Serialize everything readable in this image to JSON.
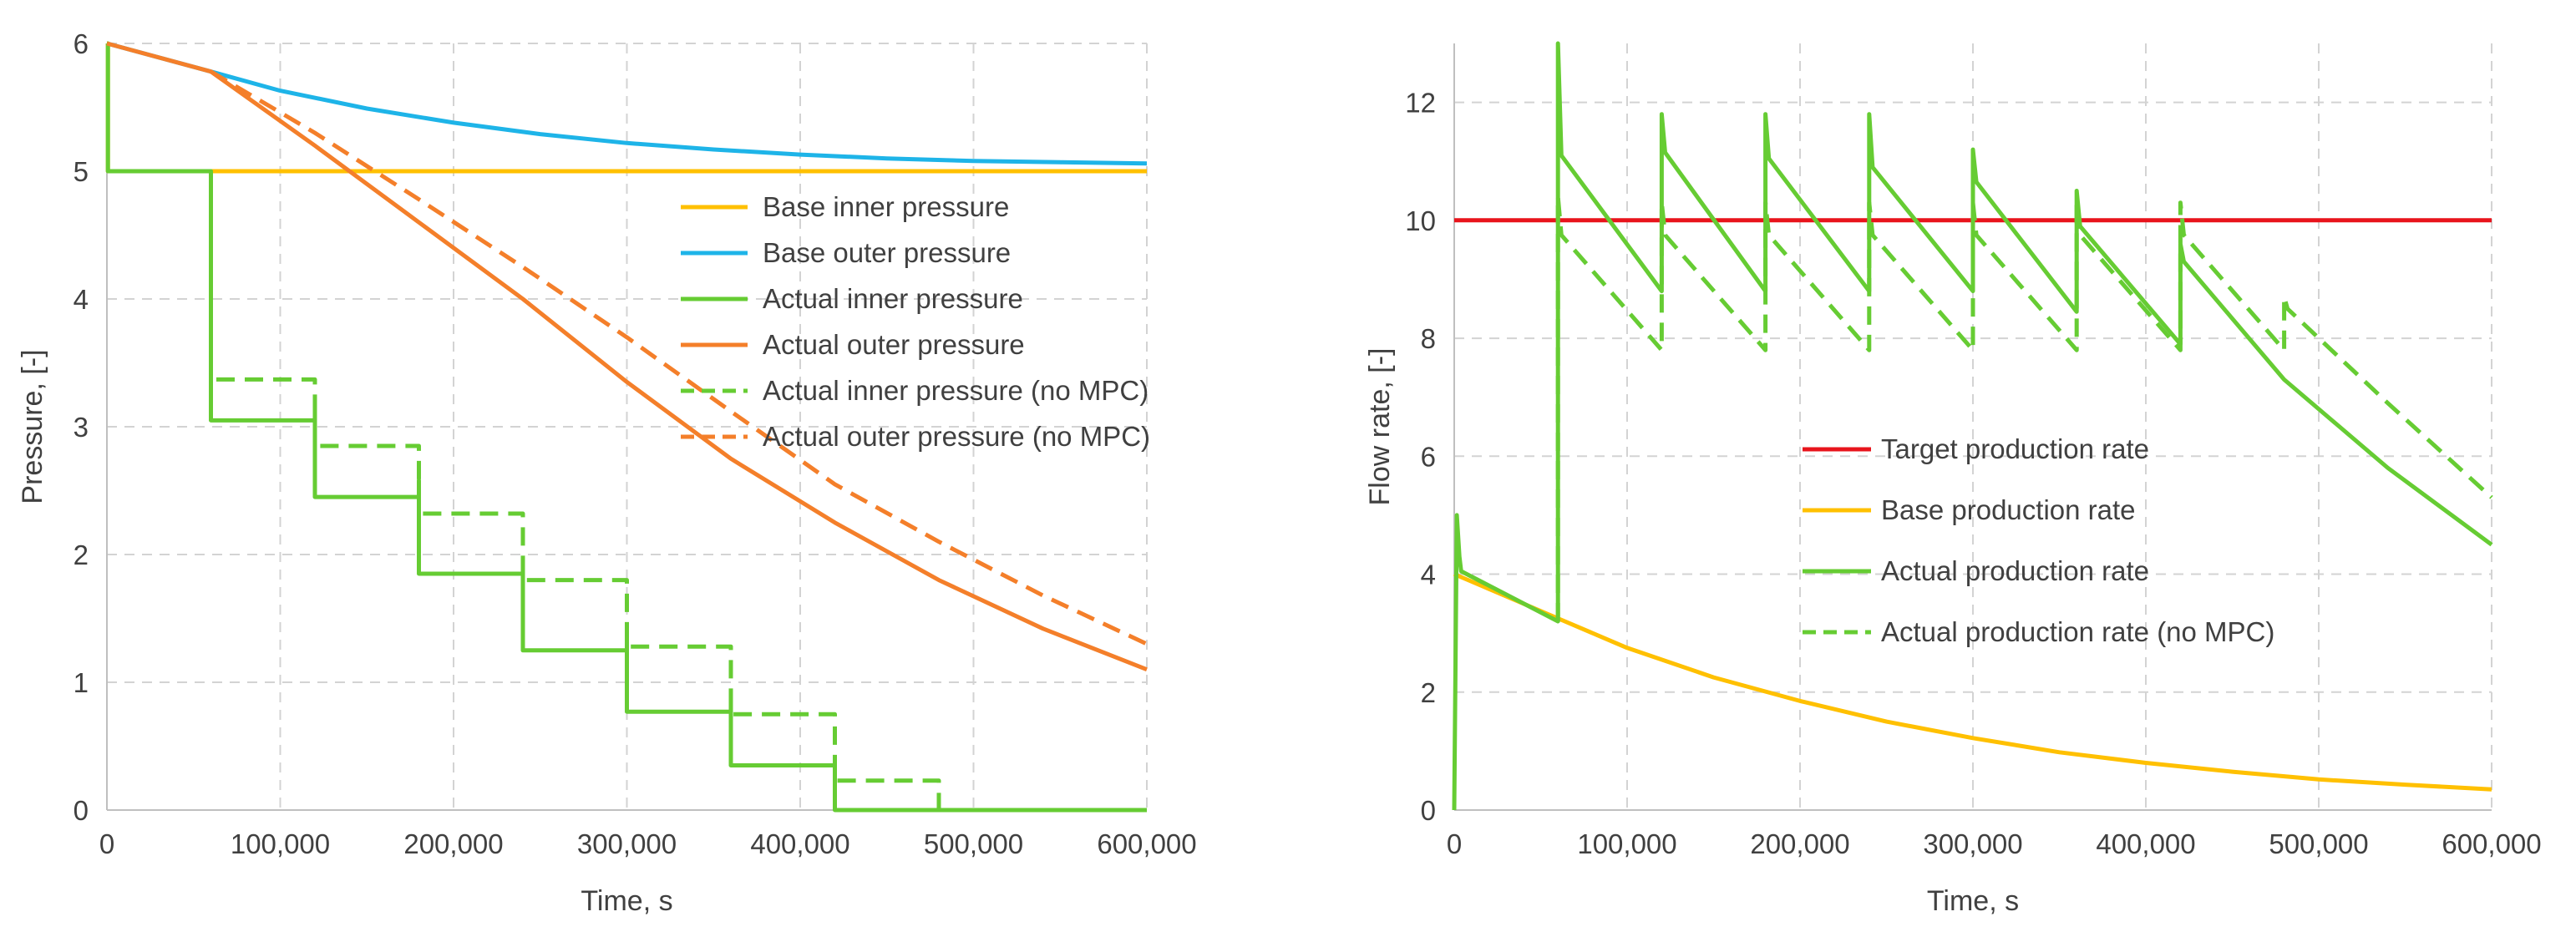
{
  "chart_data": [
    {
      "type": "line",
      "xlabel": "Time, s",
      "ylabel": "Pressure, [-]",
      "xlim": [
        0,
        600000
      ],
      "ylim": [
        0,
        6
      ],
      "x_ticks": [
        0,
        100000,
        200000,
        300000,
        400000,
        500000,
        600000
      ],
      "x_tick_labels": [
        "0",
        "100,000",
        "200,000",
        "300,000",
        "400,000",
        "500,000",
        "600,000"
      ],
      "y_ticks": [
        0,
        1,
        2,
        3,
        4,
        5,
        6
      ],
      "y_tick_labels": [
        "0",
        "1",
        "2",
        "3",
        "4",
        "5",
        "6"
      ],
      "grid": true,
      "legend_position": "center-right",
      "series": [
        {
          "name": "Base inner pressure",
          "color": "#FFC000",
          "dash": "solid",
          "x": [
            0,
            600,
            600,
            600000
          ],
          "y": [
            6,
            6,
            5,
            5
          ]
        },
        {
          "name": "Base outer pressure",
          "color": "#1EB4E8",
          "dash": "solid",
          "x": [
            0,
            60000,
            100000,
            150000,
            200000,
            250000,
            300000,
            350000,
            400000,
            450000,
            500000,
            550000,
            600000
          ],
          "y": [
            6,
            5.78,
            5.63,
            5.49,
            5.38,
            5.29,
            5.22,
            5.17,
            5.13,
            5.1,
            5.08,
            5.07,
            5.06
          ]
        },
        {
          "name": "Actual inner pressure",
          "color": "#66CC33",
          "dash": "solid",
          "x": [
            0,
            600,
            600,
            60000,
            60000,
            120000,
            120000,
            120000,
            180000,
            180000,
            180000,
            240000,
            240000,
            240000,
            300000,
            300000,
            300000,
            360000,
            360000,
            360000,
            420000,
            420000,
            600000
          ],
          "y": [
            6,
            6,
            5,
            5,
            3.05,
            3.05,
            3.2,
            2.45,
            2.45,
            2.58,
            1.85,
            1.85,
            1.95,
            1.25,
            1.25,
            1.35,
            0.77,
            0.77,
            0.9,
            0.35,
            0.35,
            0,
            0
          ]
        },
        {
          "name": "Actual outer pressure",
          "color": "#F47F2A",
          "dash": "solid",
          "x": [
            0,
            60000,
            120000,
            180000,
            240000,
            300000,
            360000,
            420000,
            480000,
            540000,
            600000
          ],
          "y": [
            6,
            5.78,
            5.2,
            4.6,
            4.0,
            3.35,
            2.75,
            2.25,
            1.8,
            1.42,
            1.1
          ]
        },
        {
          "name": "Actual inner pressure (no MPC)",
          "color": "#66CC33",
          "dash": "dashed",
          "x": [
            60000,
            60000,
            120000,
            120000,
            180000,
            180000,
            240000,
            240000,
            300000,
            300000,
            360000,
            360000,
            420000,
            420000,
            480000,
            480000,
            600000
          ],
          "y": [
            3.55,
            3.37,
            3.37,
            2.85,
            2.85,
            2.32,
            2.32,
            1.8,
            1.8,
            1.28,
            1.28,
            0.75,
            0.75,
            0.23,
            0.23,
            0,
            0
          ]
        },
        {
          "name": "Actual outer pressure (no MPC)",
          "color": "#F47F2A",
          "dash": "dashed",
          "x": [
            60000,
            120000,
            180000,
            240000,
            300000,
            360000,
            420000,
            480000,
            540000,
            600000
          ],
          "y": [
            5.78,
            5.3,
            4.78,
            4.25,
            3.7,
            3.12,
            2.55,
            2.1,
            1.68,
            1.3
          ]
        }
      ]
    },
    {
      "type": "line",
      "xlabel": "Time, s",
      "ylabel": "Flow rate, [-]",
      "xlim": [
        0,
        600000
      ],
      "ylim": [
        0,
        13
      ],
      "x_ticks": [
        0,
        100000,
        200000,
        300000,
        400000,
        500000,
        600000
      ],
      "x_tick_labels": [
        "0",
        "100,000",
        "200,000",
        "300,000",
        "400,000",
        "500,000",
        "600,000"
      ],
      "y_ticks": [
        0,
        2,
        4,
        6,
        8,
        10,
        12
      ],
      "y_tick_labels": [
        "0",
        "2",
        "4",
        "6",
        "8",
        "10",
        "12"
      ],
      "grid": true,
      "legend_position": "center",
      "series": [
        {
          "name": "Target production rate",
          "color": "#E8141C",
          "dash": "solid",
          "x": [
            0,
            600000
          ],
          "y": [
            10,
            10
          ]
        },
        {
          "name": "Base production rate",
          "color": "#FFC000",
          "dash": "solid",
          "x": [
            0,
            60000,
            100000,
            150000,
            200000,
            250000,
            300000,
            350000,
            400000,
            450000,
            500000,
            550000,
            600000
          ],
          "y": [
            4,
            3.25,
            2.75,
            2.25,
            1.85,
            1.5,
            1.22,
            0.98,
            0.8,
            0.65,
            0.52,
            0.43,
            0.35
          ]
        },
        {
          "name": "Actual production rate",
          "color": "#66CC33",
          "dash": "solid",
          "x": [
            0,
            1500,
            3000,
            4000,
            60000,
            60000,
            62000,
            120000,
            120000,
            122000,
            180000,
            180000,
            182000,
            240000,
            240000,
            242000,
            300000,
            300000,
            302000,
            360000,
            360000,
            362000,
            420000,
            420000,
            422000,
            480000,
            540000,
            600000
          ],
          "y": [
            0,
            5,
            4.3,
            4.05,
            3.2,
            13,
            11.1,
            8.8,
            11.8,
            11.15,
            8.8,
            11.8,
            11.05,
            8.8,
            11.8,
            10.9,
            8.8,
            11.2,
            10.65,
            8.45,
            10.5,
            9.9,
            7.9,
            9.6,
            9.3,
            7.3,
            5.8,
            4.5
          ]
        },
        {
          "name": "Actual production rate (no MPC)",
          "color": "#66CC33",
          "dash": "dashed",
          "x": [
            60000,
            60000,
            62000,
            120000,
            120000,
            122000,
            180000,
            180000,
            182000,
            240000,
            240000,
            242000,
            300000,
            300000,
            302000,
            360000,
            360000,
            362000,
            420000,
            420000,
            422000,
            480000,
            480000,
            482000,
            540000,
            600000
          ],
          "y": [
            3.2,
            10.4,
            9.75,
            7.8,
            10.3,
            9.75,
            7.8,
            10.3,
            9.75,
            7.8,
            10.3,
            9.75,
            7.8,
            10.3,
            9.75,
            7.8,
            10.3,
            9.75,
            7.8,
            10.3,
            9.75,
            7.8,
            8.7,
            8.5,
            6.9,
            5.3
          ]
        }
      ]
    }
  ]
}
